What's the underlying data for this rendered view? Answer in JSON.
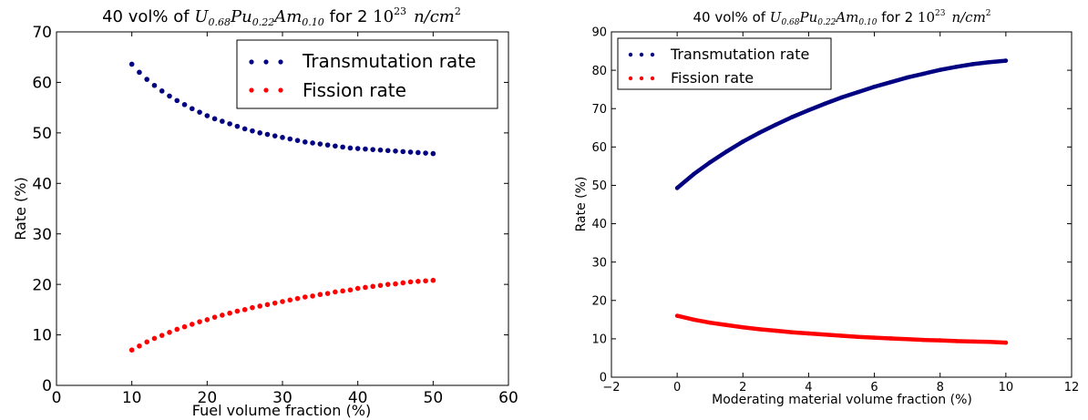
{
  "chart_data": [
    {
      "type": "scatter",
      "title": {
        "prefix": "40 vol% of ",
        "formula": [
          [
            "U",
            "0.68"
          ],
          [
            "Pu",
            "0.22"
          ],
          [
            "Am",
            "0.10"
          ]
        ],
        "mid": " for 2 ",
        "power_base": "10",
        "power_exp": "23",
        "unit_base": "n/cm",
        "unit_exp": "2"
      },
      "xlabel": "Fuel volume fraction (%)",
      "ylabel": "Rate (%)",
      "xlim": [
        0,
        60
      ],
      "ylim": [
        0,
        70
      ],
      "xticks": [
        "0",
        "10",
        "20",
        "30",
        "40",
        "50",
        "60"
      ],
      "yticks": [
        "0",
        "10",
        "20",
        "30",
        "40",
        "50",
        "60",
        "70"
      ],
      "grid": false,
      "legend_position": "top-right",
      "x": [
        10,
        11,
        12,
        13,
        14,
        15,
        16,
        17,
        18,
        19,
        20,
        21,
        22,
        23,
        24,
        25,
        26,
        27,
        28,
        29,
        30,
        31,
        32,
        33,
        34,
        35,
        36,
        37,
        38,
        39,
        40,
        41,
        42,
        43,
        44,
        45,
        46,
        47,
        48,
        49,
        50
      ],
      "series": [
        {
          "name": "Transmutation rate",
          "color": "#000080",
          "values": [
            63.6,
            62.0,
            60.6,
            59.4,
            58.3,
            57.3,
            56.4,
            55.6,
            54.8,
            54.1,
            53.4,
            52.8,
            52.3,
            51.8,
            51.3,
            50.8,
            50.4,
            50.0,
            49.7,
            49.4,
            49.1,
            48.8,
            48.5,
            48.2,
            48.0,
            47.8,
            47.6,
            47.4,
            47.2,
            47.0,
            46.9,
            46.8,
            46.7,
            46.6,
            46.5,
            46.4,
            46.3,
            46.2,
            46.1,
            46.0,
            45.9
          ]
        },
        {
          "name": "Fission rate",
          "color": "#ff0000",
          "values": [
            7.0,
            7.8,
            8.6,
            9.3,
            9.9,
            10.5,
            11.1,
            11.6,
            12.1,
            12.6,
            13.0,
            13.5,
            13.9,
            14.3,
            14.7,
            15.0,
            15.4,
            15.7,
            16.0,
            16.3,
            16.6,
            16.9,
            17.2,
            17.5,
            17.7,
            18.0,
            18.2,
            18.5,
            18.7,
            18.9,
            19.2,
            19.4,
            19.6,
            19.8,
            20.0,
            20.1,
            20.3,
            20.5,
            20.6,
            20.7,
            20.8
          ]
        }
      ]
    },
    {
      "type": "line",
      "title": {
        "prefix": "40 vol% of ",
        "formula": [
          [
            "U",
            "0.68"
          ],
          [
            "Pu",
            "0.22"
          ],
          [
            "Am",
            "0.10"
          ]
        ],
        "mid": " for 2 ",
        "power_base": "10",
        "power_exp": "23",
        "unit_base": "n/cm",
        "unit_exp": "2"
      },
      "xlabel": "Moderating material volume fraction (%)",
      "ylabel": "Rate (%)",
      "xlim": [
        -2,
        12
      ],
      "ylim": [
        0,
        90
      ],
      "xticks": [
        "−2",
        "0",
        "2",
        "4",
        "6",
        "8",
        "10",
        "12"
      ],
      "yticks": [
        "0",
        "10",
        "20",
        "30",
        "40",
        "50",
        "60",
        "70",
        "80",
        "90"
      ],
      "grid": false,
      "legend_position": "top-left",
      "x": [
        0,
        0.5,
        1,
        1.5,
        2,
        2.5,
        3,
        3.5,
        4,
        4.5,
        5,
        5.5,
        6,
        6.5,
        7,
        7.5,
        8,
        8.5,
        9,
        9.5,
        10
      ],
      "series": [
        {
          "name": "Transmutation rate",
          "color": "#000080",
          "values": [
            49.3,
            52.9,
            56.0,
            58.8,
            61.4,
            63.7,
            65.8,
            67.8,
            69.6,
            71.3,
            72.9,
            74.3,
            75.7,
            76.9,
            78.1,
            79.1,
            80.1,
            80.9,
            81.6,
            82.1,
            82.5
          ]
        },
        {
          "name": "Fission rate",
          "color": "#ff0000",
          "values": [
            16.0,
            15.0,
            14.2,
            13.6,
            13.0,
            12.5,
            12.1,
            11.7,
            11.4,
            11.1,
            10.8,
            10.5,
            10.3,
            10.1,
            9.9,
            9.7,
            9.6,
            9.4,
            9.3,
            9.2,
            9.0
          ]
        }
      ]
    }
  ]
}
